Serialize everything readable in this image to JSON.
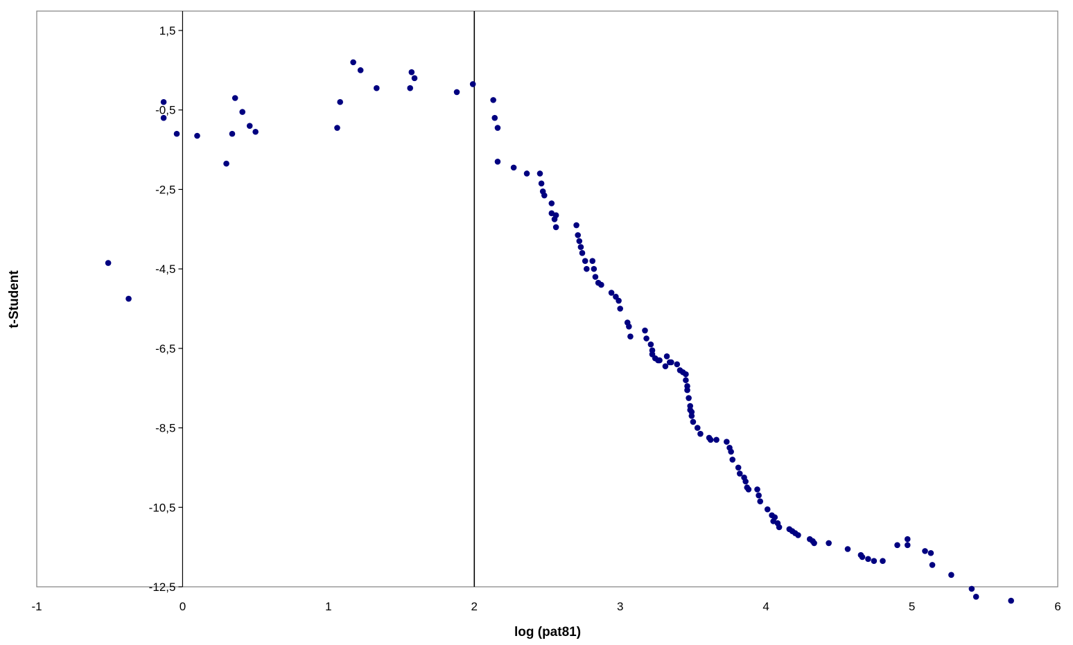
{
  "chart_data": {
    "type": "scatter",
    "title": "",
    "xlabel": "log (pat81)",
    "ylabel": "t-Student",
    "xlim": [
      -1,
      6
    ],
    "ylim": [
      -12.5,
      2
    ],
    "x_ticks": [
      "-1",
      "0",
      "1",
      "2",
      "3",
      "4",
      "5",
      "6"
    ],
    "x_tick_values": [
      -1,
      0,
      1,
      2,
      3,
      4,
      5,
      6
    ],
    "y_ticks": [
      "1,5",
      "-0,5",
      "-2,5",
      "-4,5",
      "-6,5",
      "-8,5",
      "-10,5",
      "-12,5"
    ],
    "y_tick_values": [
      1.5,
      -0.5,
      -2.5,
      -4.5,
      -6.5,
      -8.5,
      -10.5,
      -12.5
    ],
    "reference_line_x": 2,
    "grid": false,
    "legend": "none",
    "marker_color": "#000080",
    "series": [
      {
        "x": [
          -0.51,
          -0.37,
          -0.13,
          -0.13,
          -0.04,
          0.1,
          0.3,
          0.34,
          0.36,
          0.41,
          0.46,
          0.5,
          1.06,
          1.08,
          1.17,
          1.22,
          1.33,
          1.56,
          1.57,
          1.59,
          1.88,
          1.99,
          2.13,
          2.14,
          2.16,
          2.16,
          2.27,
          2.36,
          2.45,
          2.46,
          2.47,
          2.48,
          2.53,
          2.53,
          2.55,
          2.56,
          2.56,
          2.7,
          2.71,
          2.72,
          2.73,
          2.74,
          2.76,
          2.77,
          2.81,
          2.82,
          2.83,
          2.85,
          2.87,
          2.94,
          2.97,
          2.99,
          3.0,
          3.05,
          3.06,
          3.07,
          3.17,
          3.18,
          3.21,
          3.22,
          3.22,
          3.24,
          3.26,
          3.27,
          3.31,
          3.32,
          3.34,
          3.35,
          3.39,
          3.41,
          3.43,
          3.45,
          3.45,
          3.46,
          3.46,
          3.47,
          3.48,
          3.48,
          3.49,
          3.49,
          3.5,
          3.53,
          3.55,
          3.61,
          3.62,
          3.66,
          3.73,
          3.75,
          3.76,
          3.77,
          3.81,
          3.82,
          3.85,
          3.86,
          3.87,
          3.88,
          3.94,
          3.95,
          3.96,
          4.01,
          4.04,
          4.05,
          4.06,
          4.08,
          4.09,
          4.16,
          4.18,
          4.2,
          4.22,
          4.3,
          4.32,
          4.33,
          4.43,
          4.56,
          4.65,
          4.66,
          4.7,
          4.74,
          4.8,
          4.9,
          4.97,
          4.97,
          5.09,
          5.13,
          5.14,
          5.27,
          5.41,
          5.44,
          5.68
        ],
        "y": [
          -4.35,
          -5.25,
          -0.3,
          -0.7,
          -1.1,
          -1.15,
          -1.85,
          -1.1,
          -0.2,
          -0.55,
          -0.9,
          -1.05,
          -0.95,
          -0.3,
          0.7,
          0.5,
          0.05,
          0.05,
          0.45,
          0.3,
          -0.05,
          0.15,
          -0.25,
          -0.7,
          -0.95,
          -1.8,
          -1.95,
          -2.1,
          -2.1,
          -2.35,
          -2.55,
          -2.65,
          -2.85,
          -3.1,
          -3.25,
          -3.15,
          -3.45,
          -3.4,
          -3.65,
          -3.8,
          -3.95,
          -4.1,
          -4.3,
          -4.5,
          -4.3,
          -4.5,
          -4.7,
          -4.85,
          -4.9,
          -5.1,
          -5.2,
          -5.3,
          -5.5,
          -5.85,
          -5.95,
          -6.2,
          -6.05,
          -6.25,
          -6.4,
          -6.55,
          -6.65,
          -6.75,
          -6.8,
          -6.8,
          -6.95,
          -6.7,
          -6.85,
          -6.85,
          -6.9,
          -7.05,
          -7.1,
          -7.15,
          -7.3,
          -7.45,
          -7.55,
          -7.75,
          -7.95,
          -8.05,
          -8.1,
          -8.2,
          -8.35,
          -8.5,
          -8.65,
          -8.75,
          -8.8,
          -8.8,
          -8.85,
          -9.0,
          -9.1,
          -9.3,
          -9.5,
          -9.65,
          -9.75,
          -9.85,
          -10.0,
          -10.05,
          -10.05,
          -10.2,
          -10.35,
          -10.55,
          -10.7,
          -10.85,
          -10.75,
          -10.9,
          -11.0,
          -11.05,
          -11.1,
          -11.15,
          -11.2,
          -11.3,
          -11.35,
          -11.4,
          -11.4,
          -11.55,
          -11.7,
          -11.75,
          -11.8,
          -11.85,
          -11.85,
          -11.45,
          -11.3,
          -11.45,
          -11.6,
          -11.65,
          -11.95,
          -12.2,
          -12.55,
          -12.75,
          -12.85
        ]
      }
    ]
  }
}
